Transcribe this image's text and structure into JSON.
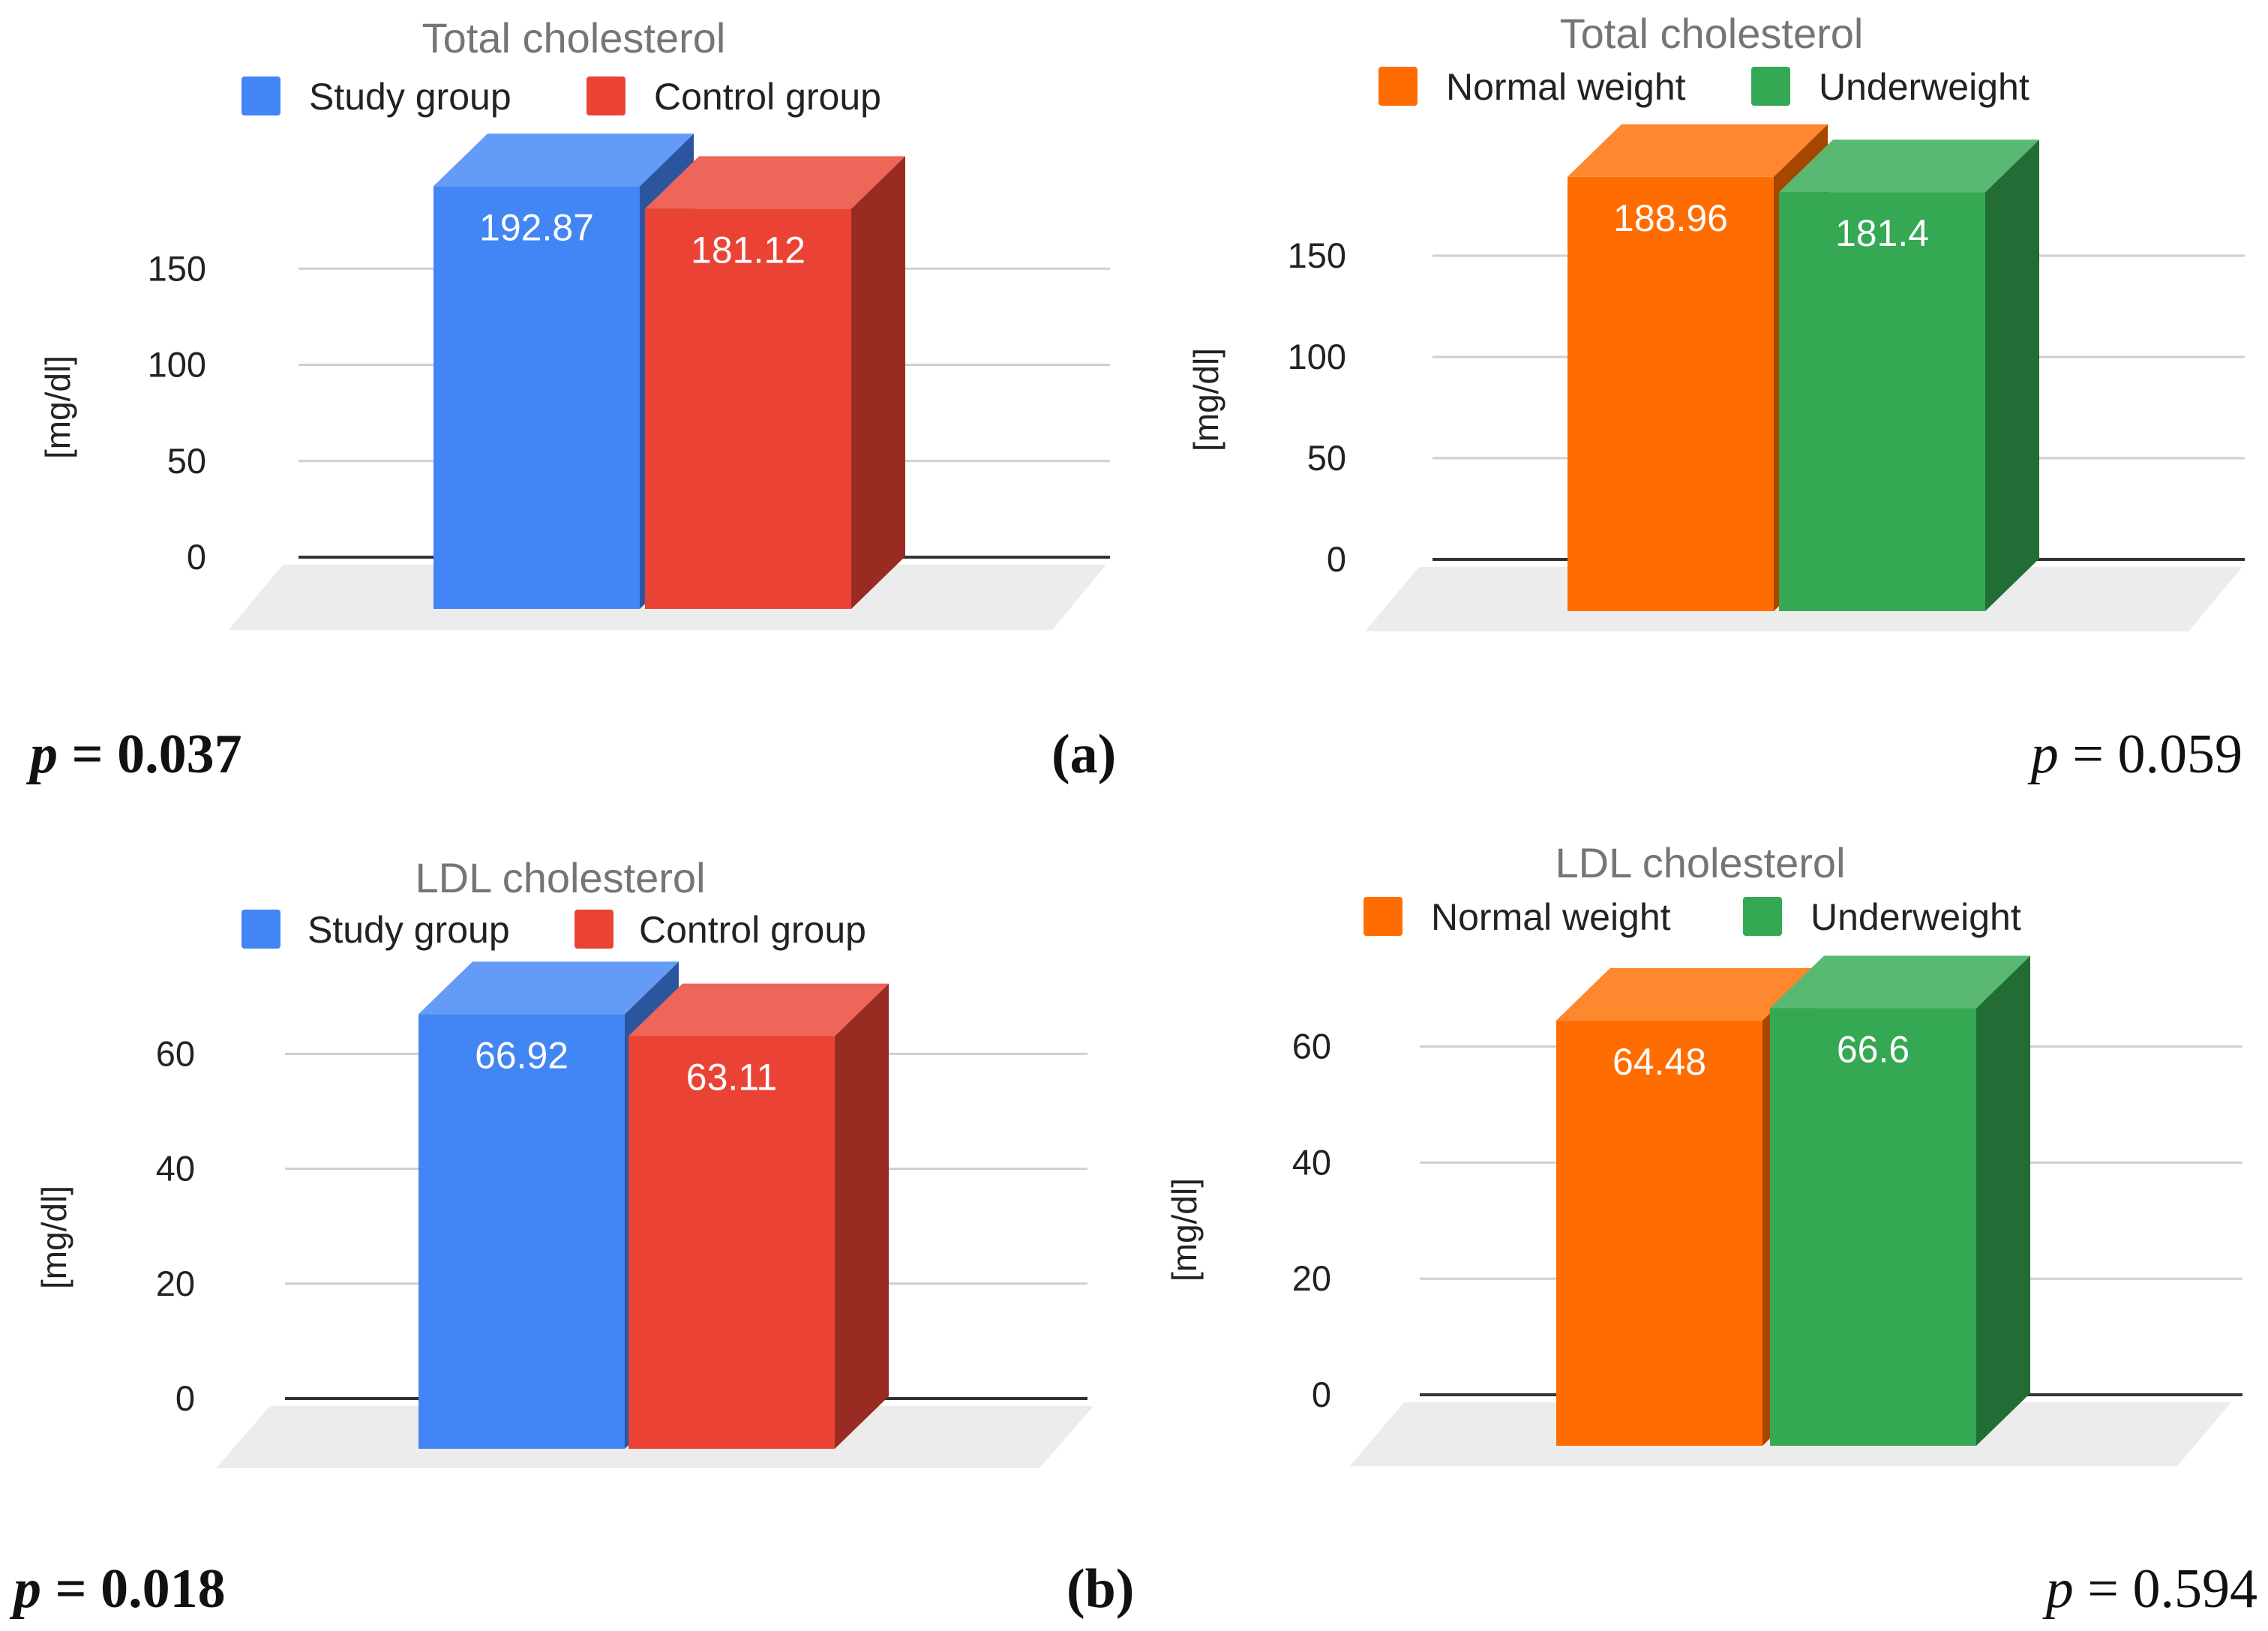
{
  "chart_data": [
    {
      "type": "bar",
      "title": "Total cholesterol",
      "ylabel": "[mg/dl]",
      "xlabel": "",
      "ylim": [
        0,
        175
      ],
      "ticks": [
        "0",
        "50",
        "100",
        "150"
      ],
      "tick_values": [
        0,
        50,
        100,
        150
      ],
      "legend": "top",
      "series": [
        {
          "name": "Study group",
          "value": 192.87,
          "label": "192.87",
          "color": "#4285f4"
        },
        {
          "name": "Control group",
          "value": 181.12,
          "label": "181.12",
          "color": "#ea4335"
        }
      ]
    },
    {
      "type": "bar",
      "title": "Total cholesterol",
      "ylabel": "[mg/dl]",
      "xlabel": "",
      "ylim": [
        0,
        175
      ],
      "ticks": [
        "0",
        "50",
        "100",
        "150"
      ],
      "tick_values": [
        0,
        50,
        100,
        150
      ],
      "legend": "top",
      "series": [
        {
          "name": "Normal weight",
          "value": 188.96,
          "label": "188.96",
          "color": "#ff6d00"
        },
        {
          "name": "Underweight",
          "value": 181.4,
          "label": "181.4",
          "color": "#34a853"
        }
      ]
    },
    {
      "type": "bar",
      "title": "LDL cholesterol",
      "ylabel": "[mg/dl]",
      "xlabel": "",
      "ylim": [
        0,
        70
      ],
      "ticks": [
        "0",
        "20",
        "40",
        "60"
      ],
      "tick_values": [
        0,
        20,
        40,
        60
      ],
      "legend": "top",
      "series": [
        {
          "name": "Study group",
          "value": 66.92,
          "label": "66.92",
          "color": "#4285f4"
        },
        {
          "name": "Control group",
          "value": 63.11,
          "label": "63.11",
          "color": "#ea4335"
        }
      ]
    },
    {
      "type": "bar",
      "title": "LDL cholesterol",
      "ylabel": "[mg/dl]",
      "xlabel": "",
      "ylim": [
        0,
        70
      ],
      "ticks": [
        "0",
        "20",
        "40",
        "60"
      ],
      "tick_values": [
        0,
        20,
        40,
        60
      ],
      "legend": "top",
      "series": [
        {
          "name": "Normal weight",
          "value": 64.48,
          "label": "64.48",
          "color": "#ff6d00"
        },
        {
          "name": "Underweight",
          "value": 66.6,
          "label": "66.6",
          "color": "#34a853"
        }
      ]
    }
  ],
  "annotations": {
    "p_symbol": "p",
    "p_values": [
      " = 0.037",
      " = 0.059",
      " = 0.018",
      " = 0.594"
    ],
    "p_bold": [
      true,
      false,
      true,
      false
    ],
    "panel_labels": [
      "(a)",
      "(b)"
    ]
  }
}
